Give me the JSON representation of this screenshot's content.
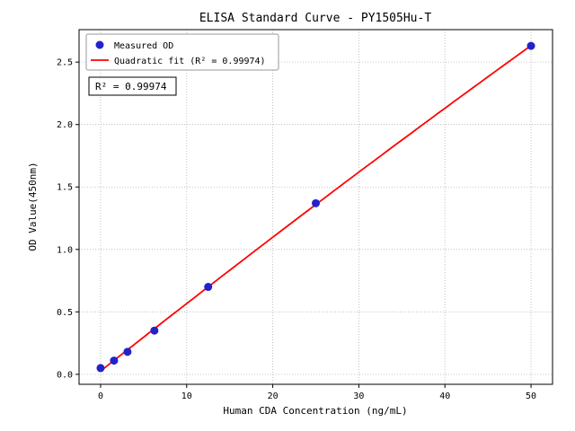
{
  "chart_data": {
    "type": "scatter",
    "title": "ELISA Standard Curve - PY1505Hu-T",
    "xlabel": "Human CDA Concentration (ng/mL)",
    "ylabel": "OD Value(450nm)",
    "x": [
      0,
      1.5625,
      3.125,
      6.25,
      12.5,
      25,
      50
    ],
    "y": [
      0.05,
      0.11,
      0.18,
      0.35,
      0.7,
      1.37,
      2.63
    ],
    "xlim": [
      -2.5,
      52.5
    ],
    "ylim": [
      -0.08,
      2.76
    ],
    "xticks": [
      0,
      10,
      20,
      30,
      40,
      50
    ],
    "yticks": [
      0.0,
      0.5,
      1.0,
      1.5,
      2.0,
      2.5
    ],
    "grid": true,
    "legend": {
      "position": "upper-left",
      "entries": [
        {
          "label": "Measured OD",
          "marker": "dot",
          "color": "#2222cc"
        },
        {
          "label": "Quadratic fit (R² = 0.99974)",
          "marker": "line",
          "color": "#ff0000"
        }
      ]
    },
    "annotation": "R² = 0.99974",
    "fit": {
      "type": "quadratic",
      "range": [
        0,
        50
      ],
      "r_squared": "0.99974"
    },
    "colors": {
      "point": "#2222cc",
      "line": "#ff0000"
    }
  }
}
